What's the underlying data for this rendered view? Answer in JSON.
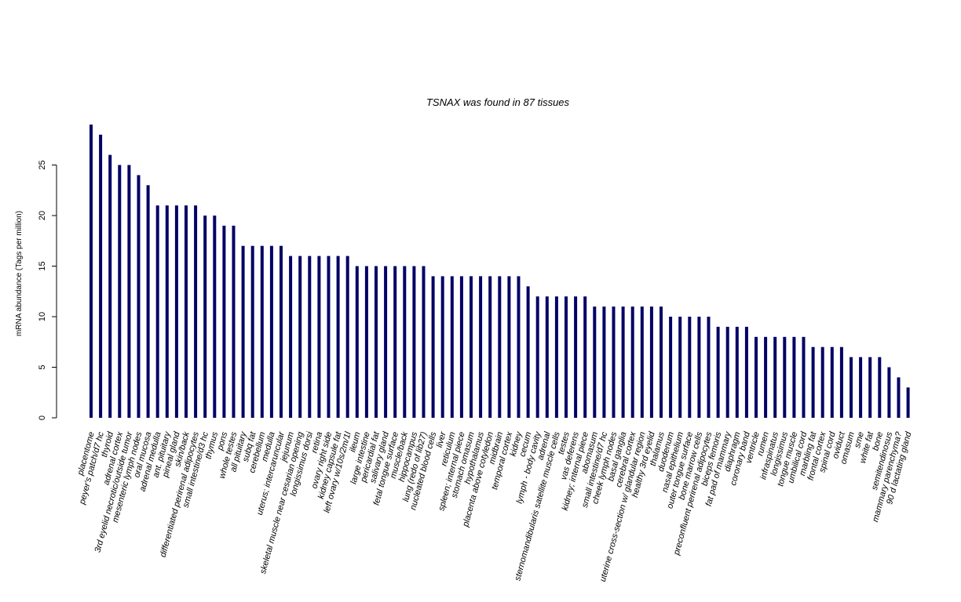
{
  "chart_data": {
    "type": "bar",
    "title": "TSNAX  was found in  87  tissues",
    "xlabel": "",
    "ylabel": "mRNA abundance (Tags per million)",
    "ylim": [
      0,
      29
    ],
    "yticks": [
      0,
      5,
      10,
      15,
      20,
      25
    ],
    "bar_color": "#000066",
    "grid": false,
    "legend": "none",
    "categories": [
      "placentome",
      "peyer's patch/d7 hc",
      "thyroid",
      "adrenal cortex",
      "3rd eyelid necrotic/outside tumor",
      "mesenteric lymph nodes",
      "oral mucosa",
      "adrenal medulla",
      "ant. pituitary",
      "pineal gland",
      "skin/back",
      "differentiated perirenal adipocytes",
      "small intestine/d3 hc",
      "thymus",
      "pons",
      "whole testes",
      "all pituitary",
      "subq fat",
      "cerebellum",
      "medulla",
      "uterus; intercaruncular",
      "jejunum",
      "skeletal muscle near cesarian opening",
      "longissimus dorsi",
      "retina",
      "ovary right side",
      "kidney capsule fat",
      "left ovary w/10s/2m/1l",
      "ileum",
      "large intestine",
      "pericardial fat",
      "salivary gland",
      "fetal tongue surface",
      "muscle/back",
      "hippocampus",
      "lung (redo of lib27)",
      "nucleated blood cells",
      "liver",
      "reticulum",
      "spleen; internal piece",
      "stomach omasum",
      "hypothalamus",
      "placenta above cotyledon",
      "midbrain",
      "temporal cortex",
      "kidney",
      "cecum",
      "lymph - body cavity",
      "adrenal",
      "sternomandibularis satellite muscle cells",
      "testes",
      "vas deferens",
      "kidney; internal piece",
      "abomasum",
      "small intestine/d7 hc",
      "cheek lymph nodes",
      "basal ganglia",
      "cerebral cortex",
      "uterine cross-section w/ glandular region",
      "healthy 3rd eyelid",
      "thalamus",
      "duodenum",
      "nasal epithelium",
      "outer tongue surface",
      "bone marrow cells",
      "preconfluent perirenal adipocytes",
      "biceps femoris",
      "fat pad of mammary",
      "diaphragm",
      "coronary band",
      "ventricle",
      "rumen",
      "infraspinatus",
      "longissimus",
      "tongue muscle",
      "umbilical cord",
      "marbling fat",
      "frontal cortex",
      "spinal cord",
      "oviduct",
      "omasum",
      "sme",
      "white fat",
      "bone",
      "semitendinosus",
      "mammary parenchyma?",
      "90 d lactating gland"
    ],
    "values": [
      29,
      28,
      26,
      25,
      25,
      24,
      23,
      21,
      21,
      21,
      21,
      21,
      20,
      20,
      19,
      19,
      17,
      17,
      17,
      17,
      17,
      16,
      16,
      16,
      16,
      16,
      16,
      16,
      15,
      15,
      15,
      15,
      15,
      15,
      15,
      15,
      14,
      14,
      14,
      14,
      14,
      14,
      14,
      14,
      14,
      14,
      13,
      12,
      12,
      12,
      12,
      12,
      12,
      11,
      11,
      11,
      11,
      11,
      11,
      11,
      11,
      10,
      10,
      10,
      10,
      10,
      9,
      9,
      9,
      9,
      8,
      8,
      8,
      8,
      8,
      8,
      7,
      7,
      7,
      7,
      6,
      6,
      6,
      6,
      5,
      4,
      3
    ]
  }
}
